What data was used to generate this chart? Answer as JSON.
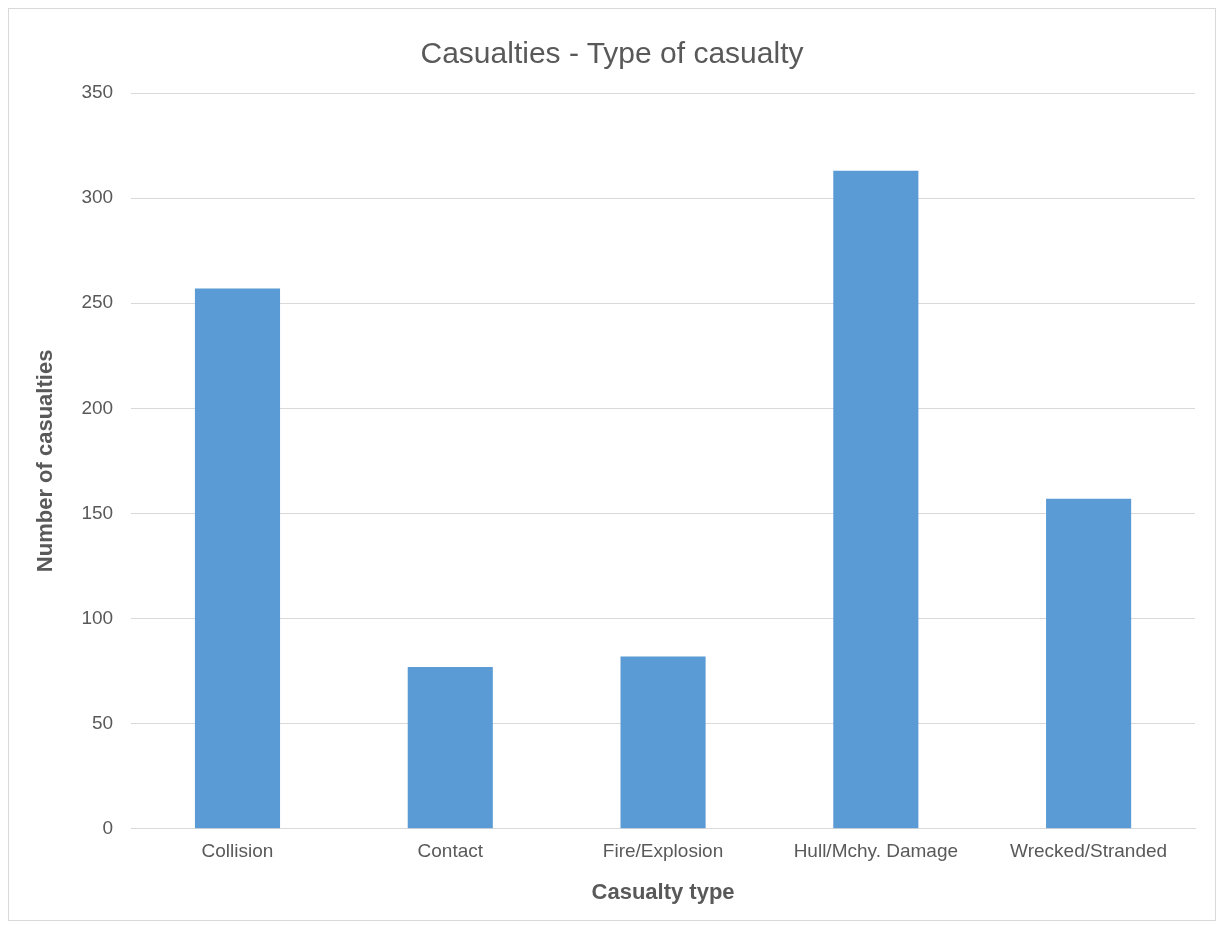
{
  "chart_data": {
    "type": "bar",
    "title": "Casualties - Type of casualty",
    "xlabel": "Casualty type",
    "ylabel": "Number of casualties",
    "categories": [
      "Collision",
      "Contact",
      "Fire/Explosion",
      "Hull/Mchy. Damage",
      "Wrecked/Stranded"
    ],
    "values": [
      257,
      77,
      82,
      313,
      157
    ],
    "color": "#5b9bd5",
    "ylim": [
      0,
      350
    ],
    "yticks": [
      0,
      50,
      100,
      150,
      200,
      250,
      300,
      350
    ],
    "grid": "y",
    "legend": false
  }
}
